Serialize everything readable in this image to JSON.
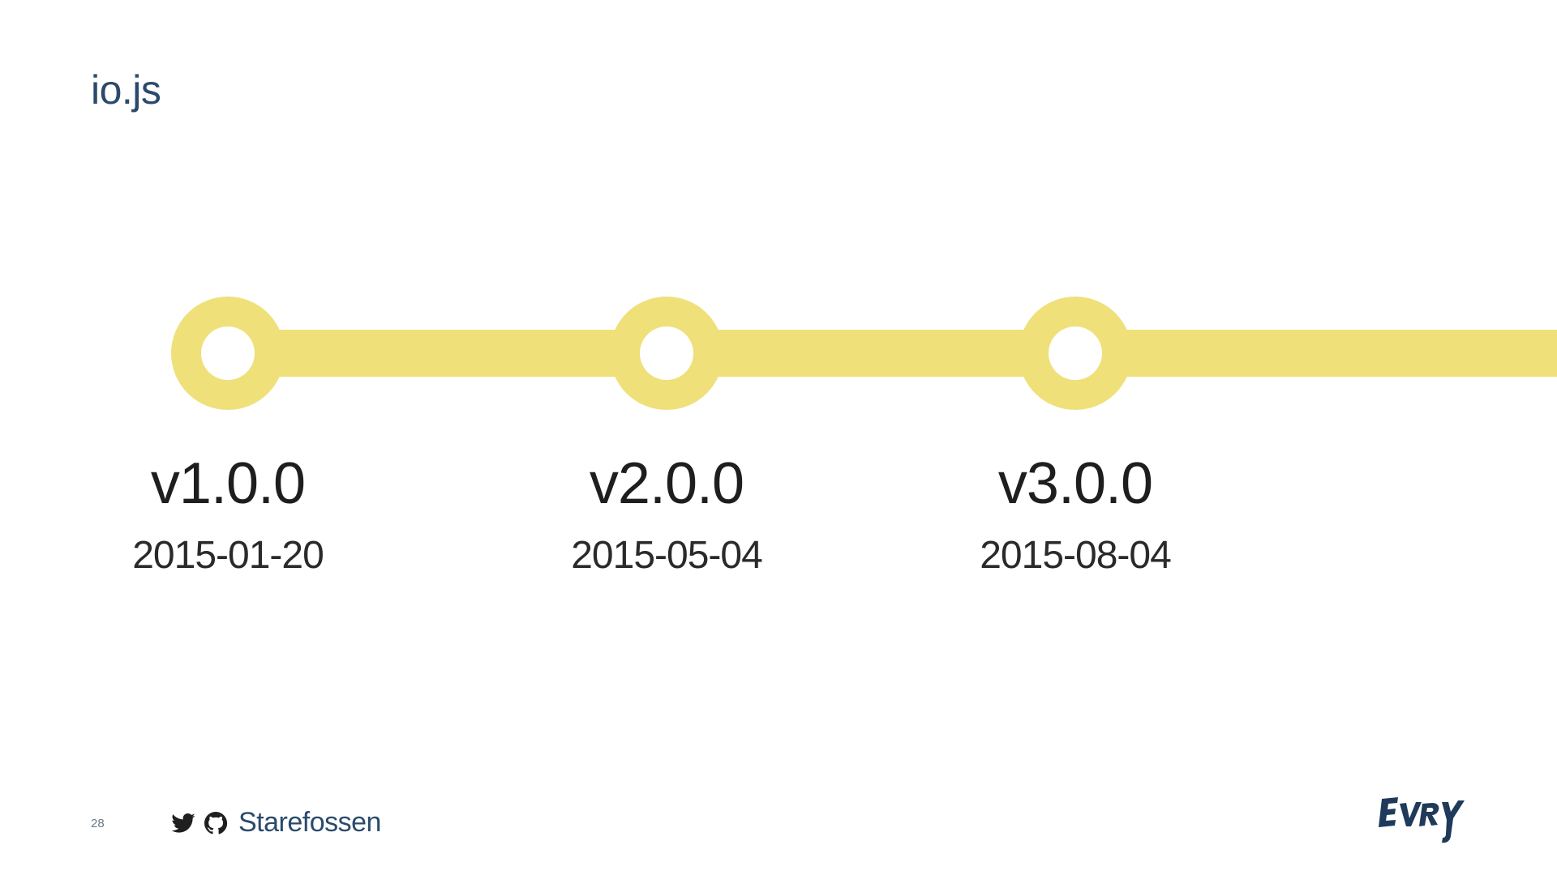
{
  "slide": {
    "title": "io.js",
    "page_number": "28"
  },
  "footer": {
    "handle": "Starefossen",
    "icons": [
      "twitter-icon",
      "github-icon"
    ],
    "logo_text": "EVRY"
  },
  "colors": {
    "timeline": "#efe07a",
    "title": "#2b4a6b",
    "logo": "#1f3a5a"
  },
  "timeline": {
    "milestones": [
      {
        "version": "v1.0.0",
        "date": "2015-01-20"
      },
      {
        "version": "v2.0.0",
        "date": "2015-05-04"
      },
      {
        "version": "v3.0.0",
        "date": "2015-08-04"
      }
    ]
  }
}
